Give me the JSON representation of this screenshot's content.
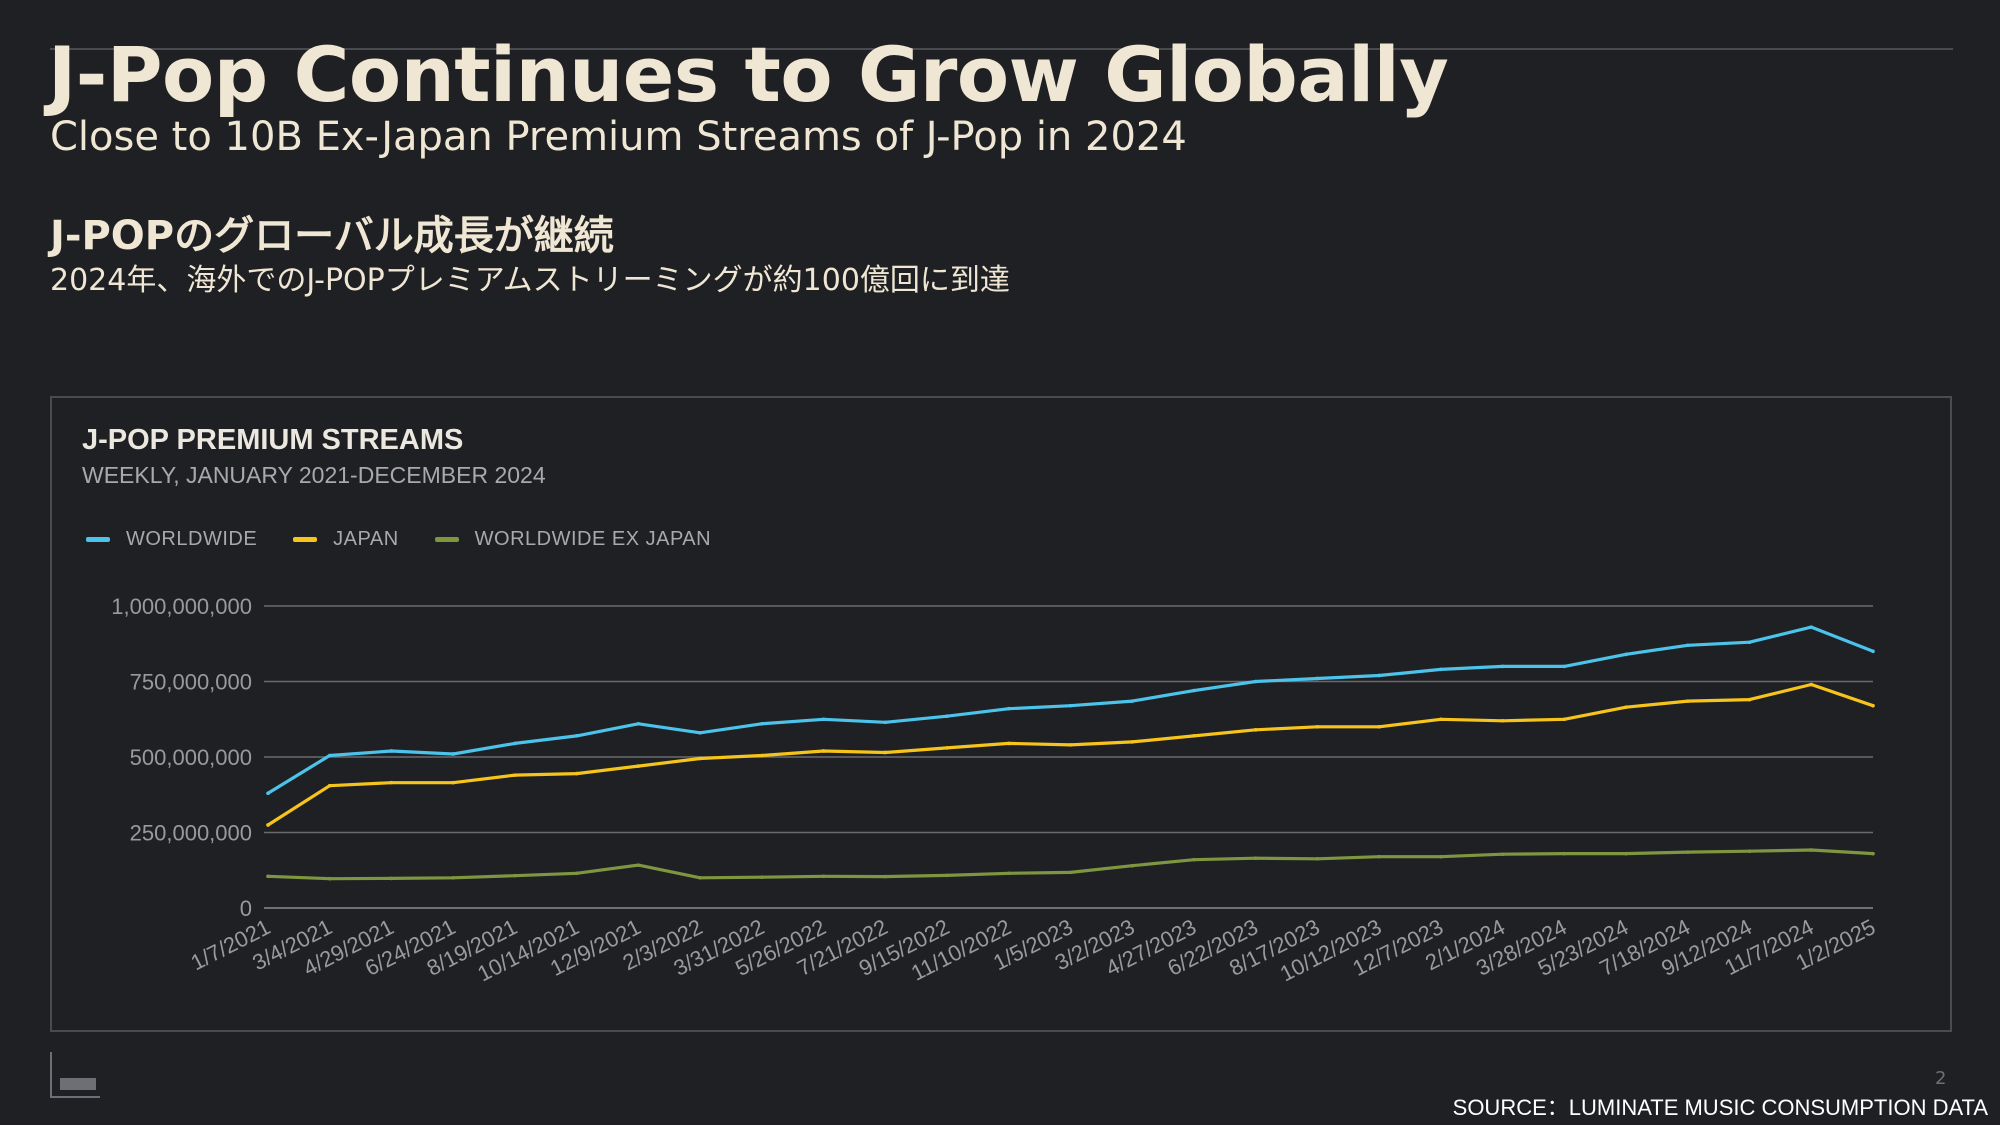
{
  "slide": {
    "title": "J-Pop Continues to Grow Globally",
    "subtitle": "Close to 10B Ex-Japan Premium Streams of J-Pop in 2024",
    "jp_title": "J-POPのグローバル成長が継続",
    "jp_subtitle": "2024年、海外でのJ-POPプレミアムストリーミングが約100億回に到達",
    "page_number": "2",
    "source": "SOURCE：LUMINATE MUSIC CONSUMPTION DATA"
  },
  "colors": {
    "background": "#1f2024",
    "title_text": "#efe6d3",
    "worldwide": "#4cc3ea",
    "japan": "#f6c41a",
    "worldwide_ex_japan": "#7e9640",
    "gridline": "#6a6b6f"
  },
  "chart_data": {
    "type": "line",
    "title": "J-POP PREMIUM STREAMS",
    "subtitle": "WEEKLY, JANUARY 2021-DECEMBER 2024",
    "legend_position": "top-left",
    "grid": true,
    "ylim": [
      0,
      1000000000
    ],
    "y_ticks": [
      0,
      250000000,
      500000000,
      750000000,
      1000000000
    ],
    "y_tick_labels": [
      "0",
      "250,000,000",
      "500,000,000",
      "750,000,000",
      "1,000,000,000"
    ],
    "x_tick_labels": [
      "1/7/2021",
      "3/4/2021",
      "4/29/2021",
      "6/24/2021",
      "8/19/2021",
      "10/14/2021",
      "12/9/2021",
      "2/3/2022",
      "3/31/2022",
      "5/26/2022",
      "7/21/2022",
      "9/15/2022",
      "11/10/2022",
      "1/5/2023",
      "3/2/2023",
      "4/27/2023",
      "6/22/2023",
      "8/17/2023",
      "10/12/2023",
      "12/7/2023",
      "2/1/2024",
      "3/28/2024",
      "5/23/2024",
      "7/18/2024",
      "9/12/2024",
      "11/7/2024",
      "1/2/2025"
    ],
    "x": [
      "1/7/2021",
      "3/4/2021",
      "4/29/2021",
      "6/24/2021",
      "8/19/2021",
      "10/14/2021",
      "12/9/2021",
      "2/3/2022",
      "3/31/2022",
      "5/26/2022",
      "7/21/2022",
      "9/15/2022",
      "11/10/2022",
      "1/5/2023",
      "3/2/2023",
      "4/27/2023",
      "6/22/2023",
      "8/17/2023",
      "10/12/2023",
      "12/7/2023",
      "2/1/2024",
      "3/28/2024",
      "5/23/2024",
      "7/18/2024",
      "9/12/2024",
      "11/7/2024",
      "1/2/2025"
    ],
    "series": [
      {
        "name": "WORLDWIDE",
        "color": "#4cc3ea",
        "values": [
          380000000,
          505000000,
          520000000,
          510000000,
          545000000,
          570000000,
          610000000,
          580000000,
          610000000,
          625000000,
          615000000,
          635000000,
          660000000,
          670000000,
          685000000,
          720000000,
          750000000,
          760000000,
          770000000,
          790000000,
          800000000,
          800000000,
          840000000,
          870000000,
          880000000,
          930000000,
          850000000
        ]
      },
      {
        "name": "JAPAN",
        "color": "#f6c41a",
        "values": [
          275000000,
          405000000,
          415000000,
          415000000,
          440000000,
          445000000,
          470000000,
          495000000,
          505000000,
          520000000,
          515000000,
          530000000,
          545000000,
          540000000,
          550000000,
          570000000,
          590000000,
          600000000,
          600000000,
          625000000,
          620000000,
          625000000,
          665000000,
          685000000,
          690000000,
          740000000,
          670000000
        ]
      },
      {
        "name": "WORLDWIDE EX JAPAN",
        "color": "#7e9640",
        "values": [
          105000000,
          97000000,
          98000000,
          100000000,
          107000000,
          115000000,
          142000000,
          100000000,
          102000000,
          105000000,
          104000000,
          108000000,
          115000000,
          118000000,
          140000000,
          160000000,
          165000000,
          163000000,
          170000000,
          170000000,
          178000000,
          180000000,
          180000000,
          185000000,
          188000000,
          192000000,
          180000000
        ]
      }
    ]
  }
}
